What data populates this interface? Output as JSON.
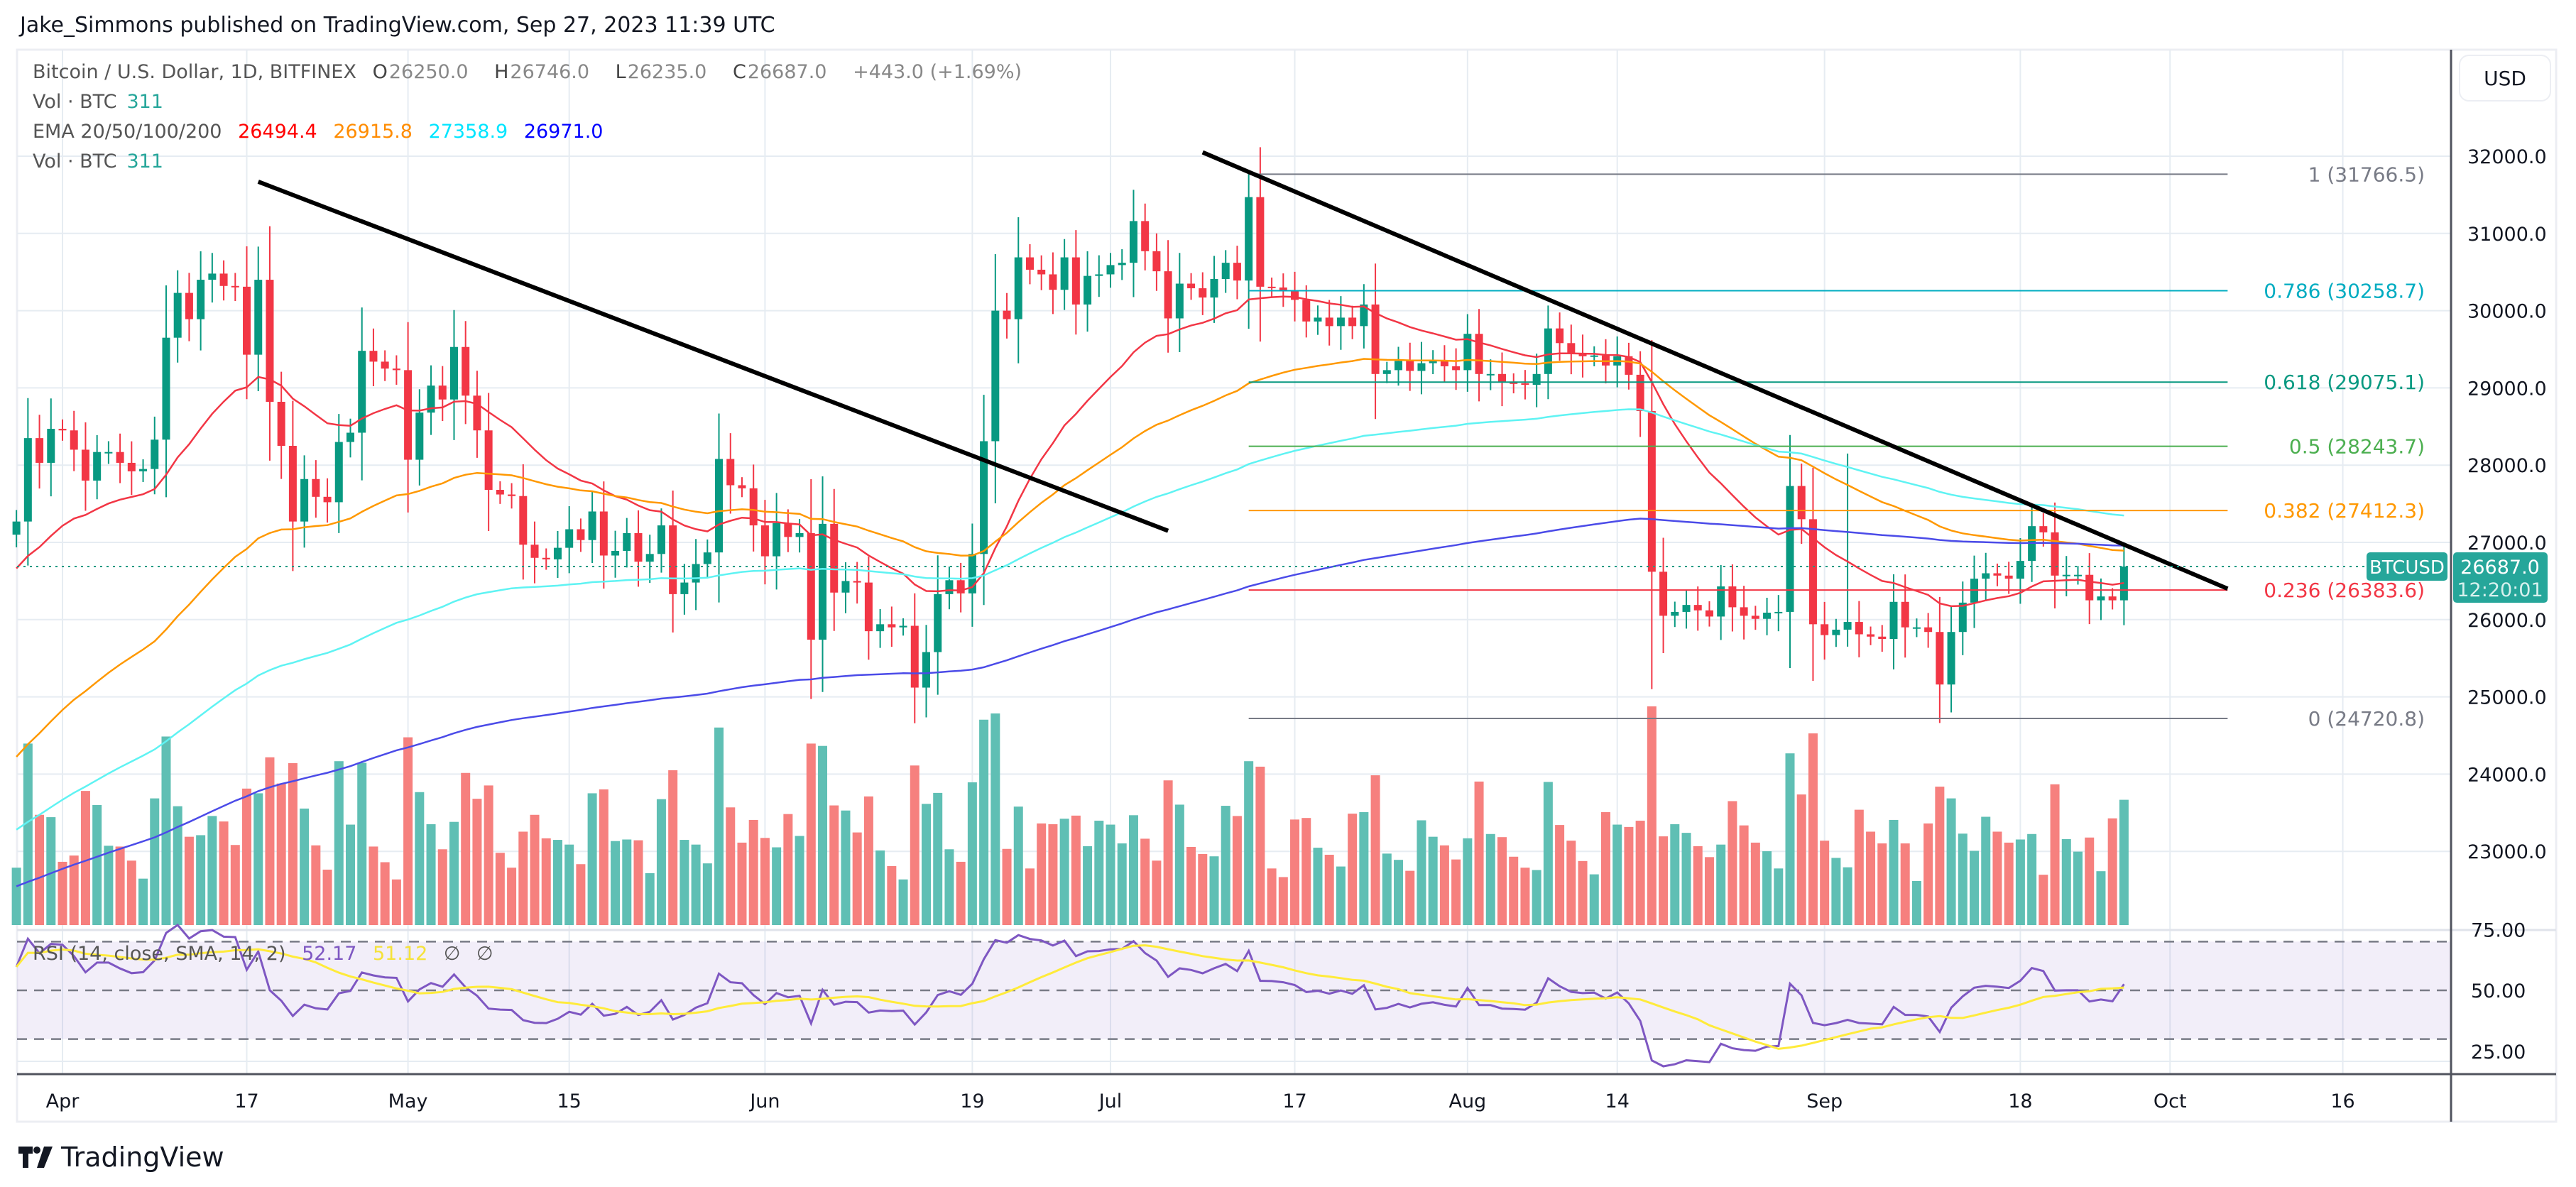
{
  "header": {
    "title": "Jake_Simmons published on TradingView.com, Sep 27, 2023 11:39 UTC"
  },
  "legend": {
    "symbol": "Bitcoin / U.S. Dollar, 1D, BITFINEX",
    "o_label": "O",
    "o": "26250.0",
    "h_label": "H",
    "h": "26746.0",
    "l_label": "L",
    "l": "26235.0",
    "c_label": "C",
    "c": "26687.0",
    "change": "+443.0 (+1.69%)",
    "vol_label": "Vol · BTC",
    "vol": "311",
    "ema_label": "EMA 20/50/100/200",
    "ema_values": [
      "26494.4",
      "26915.8",
      "27358.9",
      "26971.0"
    ],
    "vol2_label": "Vol · BTC",
    "vol2": "311"
  },
  "rsi_legend": {
    "label": "RSI (14, close, SMA, 14, 2)",
    "rsi": "52.17",
    "sma": "51.12",
    "na1": "∅",
    "na2": "∅"
  },
  "price_axis": {
    "currency": "USD",
    "ticks": [
      "32000.0",
      "31000.0",
      "30000.0",
      "29000.0",
      "28000.0",
      "27000.0",
      "26000.0",
      "25000.0",
      "24000.0",
      "23000.0"
    ]
  },
  "rsi_axis": {
    "ticks": [
      "75.00",
      "50.00",
      "25.00"
    ]
  },
  "current_price": {
    "symbol": "BTCUSD",
    "price": "26687.0",
    "countdown": "12:20:01"
  },
  "colors": {
    "up": "#089981",
    "down": "#f23645",
    "vol_up": "#5fbfb4",
    "vol_down": "#f6807e",
    "ema20": "#f23645",
    "ema50": "#ff9800",
    "ema100": "#5ff3f3",
    "ema200": "#4b4be8",
    "rsi": "#7e57c2",
    "rsi_sma": "#ffeb3b"
  },
  "logo": {
    "text": "TradingView"
  },
  "chart_data": {
    "type": "candlestick",
    "start_date": "2023-03-28",
    "x_ticks": [
      {
        "label": "Apr",
        "day": 4
      },
      {
        "label": "17",
        "day": 20
      },
      {
        "label": "May",
        "day": 34
      },
      {
        "label": "15",
        "day": 48
      },
      {
        "label": "Jun",
        "day": 65
      },
      {
        "label": "19",
        "day": 83
      },
      {
        "label": "Jul",
        "day": 95
      },
      {
        "label": "17",
        "day": 111
      },
      {
        "label": "Aug",
        "day": 126
      },
      {
        "label": "14",
        "day": 139
      },
      {
        "label": "Sep",
        "day": 157
      },
      {
        "label": "18",
        "day": 174
      },
      {
        "label": "Oct",
        "day": 187
      },
      {
        "label": "16",
        "day": 202
      }
    ],
    "y_range": [
      22500,
      32600
    ],
    "first_open": 27100,
    "closes": [
      27270,
      28350,
      28030,
      28470,
      28450,
      28200,
      27800,
      28170,
      28170,
      28030,
      27920,
      27950,
      28330,
      29650,
      30230,
      29890,
      30400,
      30480,
      30320,
      30310,
      29430,
      30400,
      28820,
      28250,
      27270,
      27820,
      27590,
      27520,
      28300,
      28420,
      29480,
      29340,
      29250,
      29230,
      28070,
      28680,
      29030,
      28850,
      29530,
      28900,
      28450,
      27680,
      27620,
      27600,
      26970,
      26800,
      26780,
      26930,
      27170,
      27030,
      27400,
      26830,
      26890,
      27120,
      26750,
      26850,
      27220,
      26330,
      26480,
      26720,
      26870,
      28080,
      27740,
      27700,
      27220,
      26820,
      27250,
      27070,
      27120,
      25740,
      27240,
      26350,
      26500,
      26480,
      25850,
      25940,
      25900,
      25920,
      25120,
      25580,
      26330,
      26510,
      26340,
      26850,
      28310,
      30000,
      29890,
      30690,
      30530,
      30470,
      30270,
      30690,
      30080,
      30450,
      30470,
      30590,
      30620,
      31160,
      30770,
      30510,
      29900,
      30350,
      30290,
      30170,
      30410,
      30620,
      30390,
      31470,
      30310,
      30300,
      30250,
      30140,
      29860,
      29910,
      29800,
      29910,
      29800,
      30080,
      29180,
      29230,
      29350,
      29220,
      29320,
      29360,
      29280,
      29230,
      29700,
      29180,
      29180,
      29070,
      29060,
      29040,
      29180,
      29770,
      29580,
      29440,
      29410,
      29420,
      29290,
      29410,
      29170,
      28700,
      26620,
      26050,
      26100,
      26190,
      26120,
      26040,
      26430,
      26160,
      26050,
      26010,
      26090,
      26100,
      27730,
      27300,
      25940,
      25800,
      25870,
      25970,
      25810,
      25780,
      25750,
      26230,
      25900,
      25900,
      25840,
      25160,
      25840,
      26220,
      26530,
      26600,
      26570,
      26530,
      26760,
      27210,
      27130,
      26570,
      26580,
      26580,
      26250,
      26300,
      26250,
      26687
    ],
    "ema_seeds": {
      "ema20": 26600,
      "ema50": 24100,
      "ema100": 23200,
      "ema200": 22500
    },
    "fib": {
      "start_day": 107,
      "end_day": 192,
      "levels": [
        {
          "label": "1 (31766.5)",
          "price": 31766.5,
          "color": "#787b86"
        },
        {
          "label": "0.786 (30258.7)",
          "price": 30258.7,
          "color": "#00acc1"
        },
        {
          "label": "0.618 (29075.1)",
          "price": 29075.1,
          "color": "#089981"
        },
        {
          "label": "0.5 (28243.7)",
          "price": 28243.7,
          "color": "#4caf50"
        },
        {
          "label": "0.382 (27412.3)",
          "price": 27412.3,
          "color": "#ff9800"
        },
        {
          "label": "0.236 (26383.6)",
          "price": 26383.6,
          "color": "#f23645"
        },
        {
          "label": "0 (24720.8)",
          "price": 24720.8,
          "color": "#787b86"
        }
      ]
    },
    "trendlines": [
      {
        "from": {
          "day": 21,
          "price": 31670
        },
        "to": {
          "day": 100,
          "price": 27150
        }
      },
      {
        "from": {
          "day": 103,
          "price": 32050
        },
        "to": {
          "day": 192,
          "price": 26400
        }
      }
    ],
    "rsi": {
      "levels": [
        70,
        50,
        30
      ],
      "last": 52.17,
      "sma_last": 51.12
    }
  }
}
